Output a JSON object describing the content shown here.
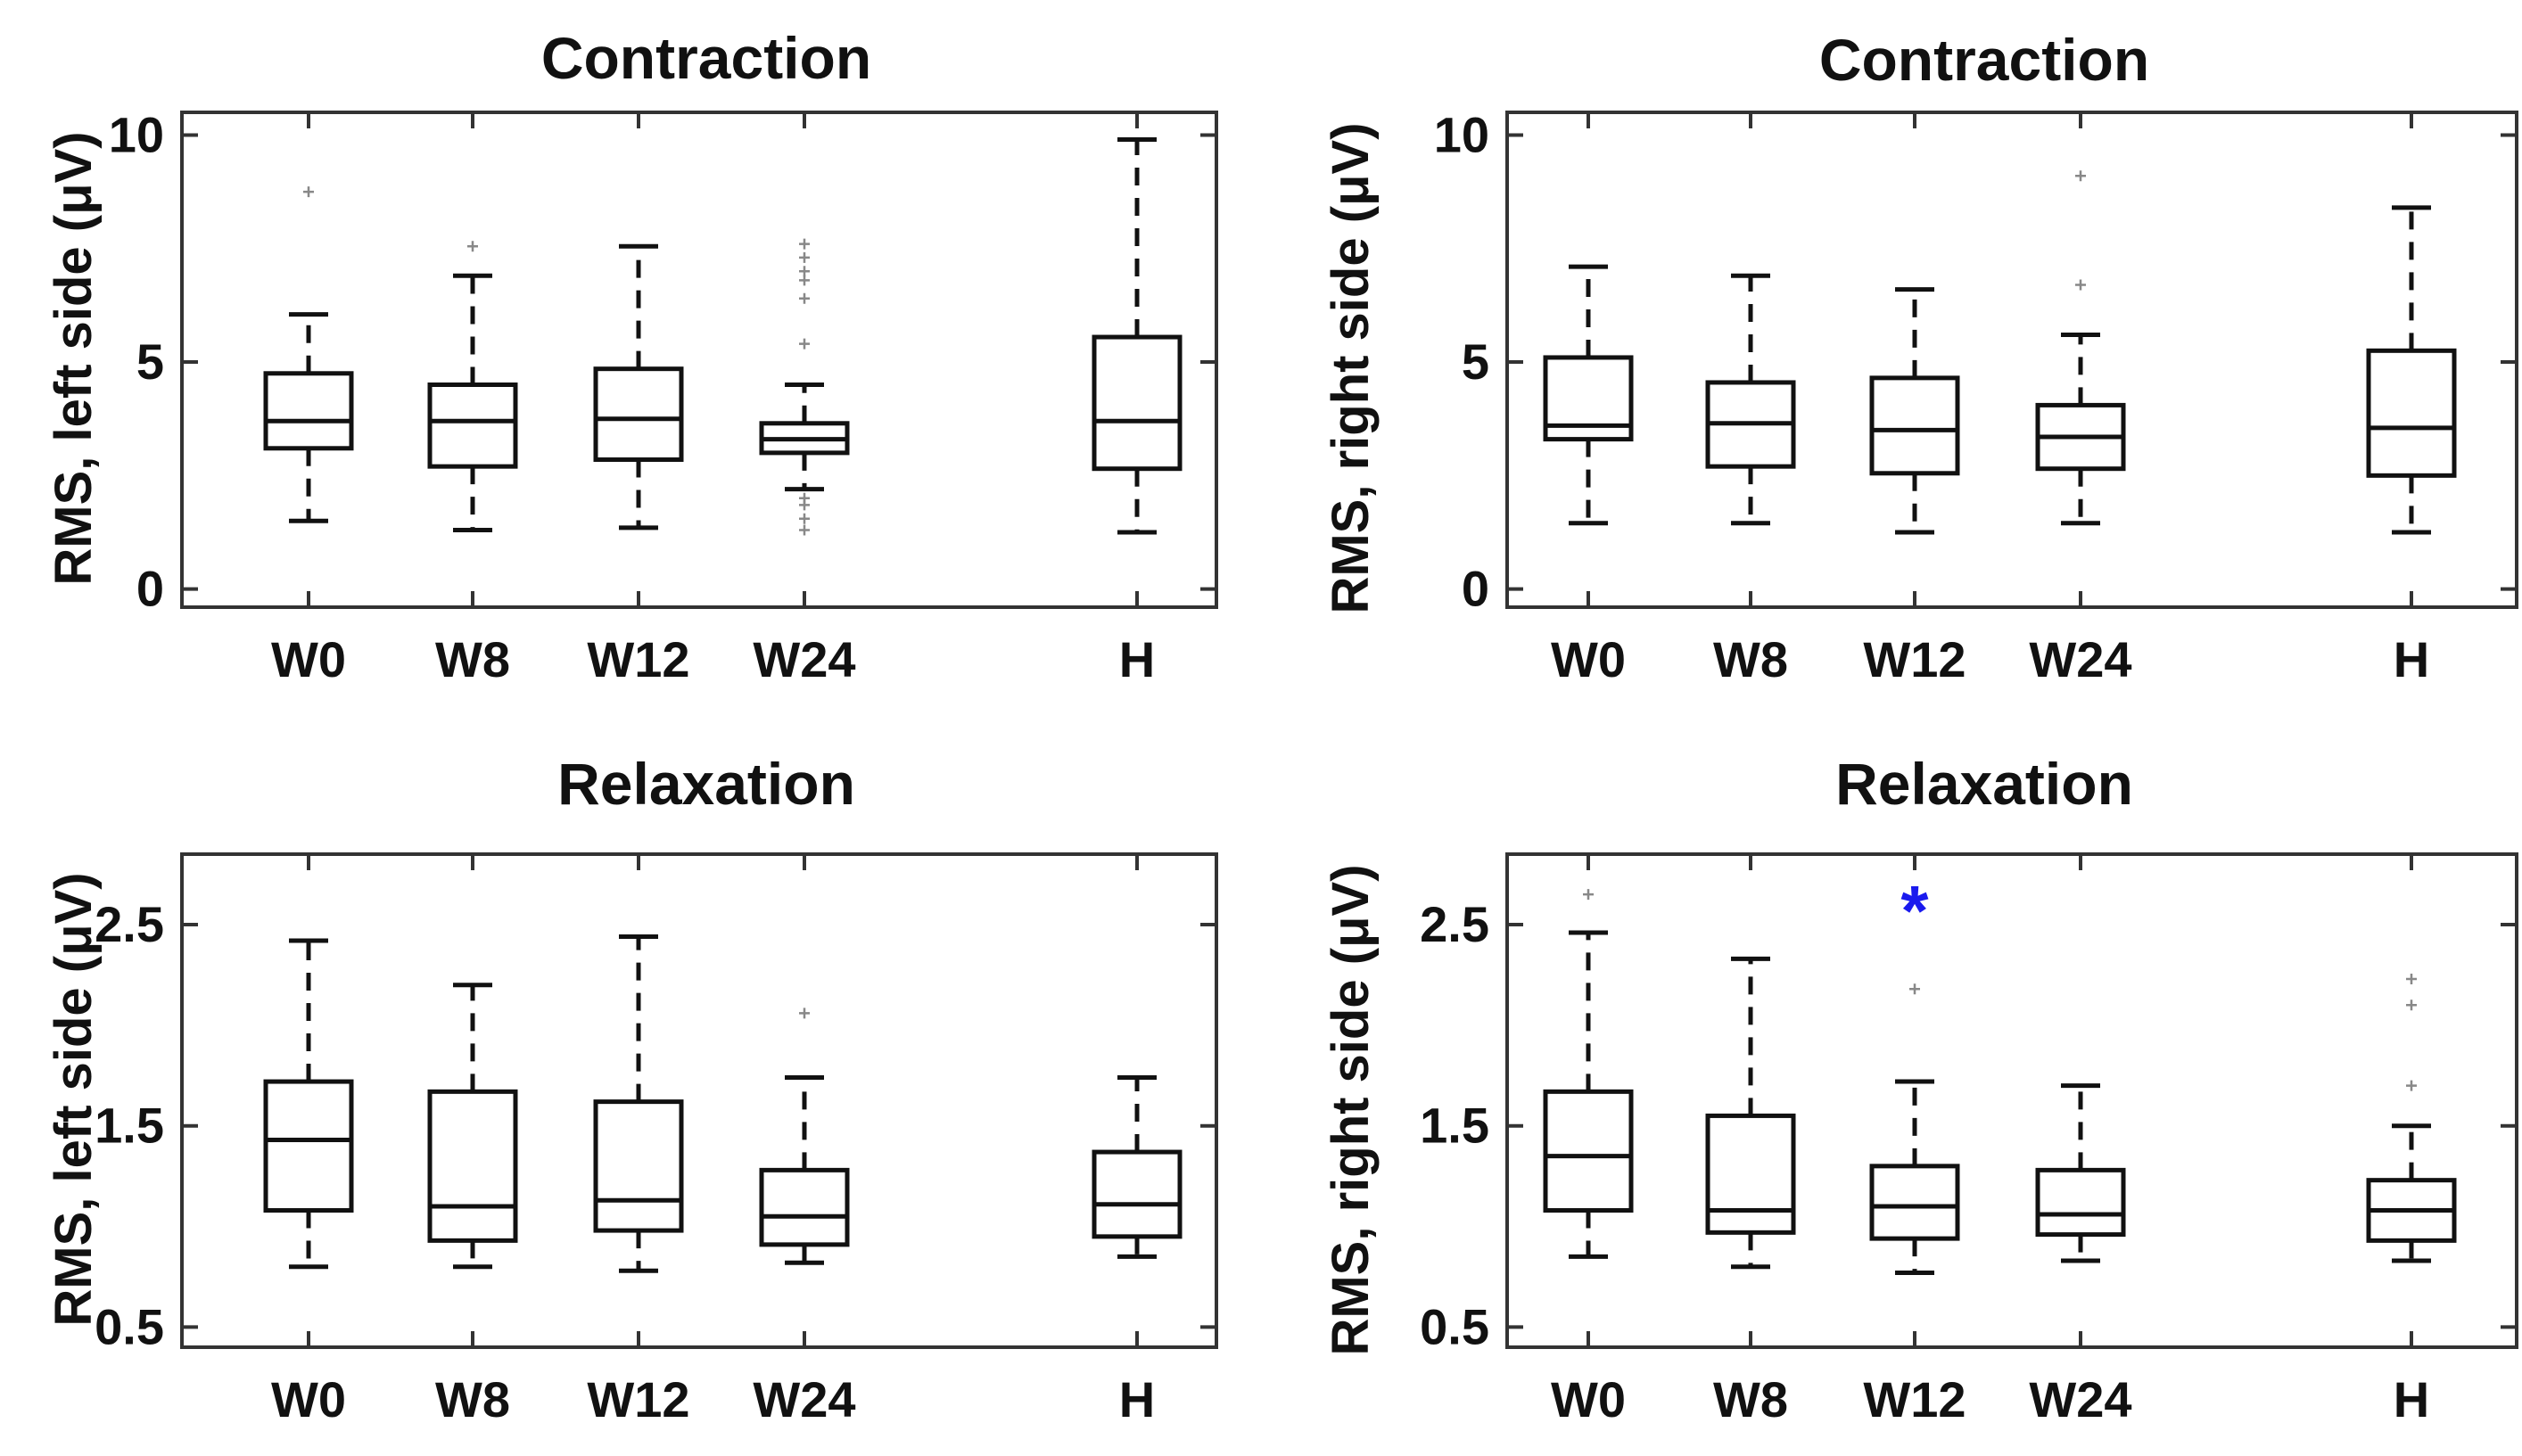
{
  "chart_data": [
    {
      "type": "box",
      "title": "Contraction",
      "ylabel": "RMS, left side (μV)",
      "xlabel": "",
      "categories": [
        "W0",
        "W8",
        "W12",
        "W24",
        "H"
      ],
      "ylim": [
        -0.4,
        10.5
      ],
      "yticks": [
        0,
        5,
        10
      ],
      "ytick_labels": [
        "0",
        "5",
        "10"
      ],
      "boxes": [
        {
          "category": "W0",
          "whisker_low": 1.5,
          "q1": 3.1,
          "median": 3.7,
          "q3": 4.75,
          "whisker_high": 6.05,
          "outliers": [
            8.75
          ]
        },
        {
          "category": "W8",
          "whisker_low": 1.3,
          "q1": 2.7,
          "median": 3.7,
          "q3": 4.5,
          "whisker_high": 6.9,
          "outliers": [
            7.55
          ]
        },
        {
          "category": "W12",
          "whisker_low": 1.35,
          "q1": 2.85,
          "median": 3.75,
          "q3": 4.85,
          "whisker_high": 7.55,
          "outliers": []
        },
        {
          "category": "W24",
          "whisker_low": 2.2,
          "q1": 3.0,
          "median": 3.3,
          "q3": 3.65,
          "whisker_high": 4.5,
          "outliers": [
            1.3,
            1.55,
            1.85,
            2.0,
            5.4,
            6.4,
            6.8,
            7.0,
            7.3,
            7.6
          ]
        },
        {
          "category": "H",
          "whisker_low": 1.25,
          "q1": 2.65,
          "median": 3.7,
          "q3": 5.55,
          "whisker_high": 9.9,
          "outliers": []
        }
      ],
      "annotations": []
    },
    {
      "type": "box",
      "title": "Contraction",
      "ylabel": "RMS, right side (μV)",
      "xlabel": "",
      "categories": [
        "W0",
        "W8",
        "W12",
        "W24",
        "H"
      ],
      "ylim": [
        -0.4,
        10.5
      ],
      "yticks": [
        0,
        5,
        10
      ],
      "ytick_labels": [
        "0",
        "5",
        "10"
      ],
      "boxes": [
        {
          "category": "W0",
          "whisker_low": 1.45,
          "q1": 3.3,
          "median": 3.6,
          "q3": 5.1,
          "whisker_high": 7.1,
          "outliers": []
        },
        {
          "category": "W8",
          "whisker_low": 1.45,
          "q1": 2.7,
          "median": 3.65,
          "q3": 4.55,
          "whisker_high": 6.9,
          "outliers": []
        },
        {
          "category": "W12",
          "whisker_low": 1.25,
          "q1": 2.55,
          "median": 3.5,
          "q3": 4.65,
          "whisker_high": 6.6,
          "outliers": []
        },
        {
          "category": "W24",
          "whisker_low": 1.45,
          "q1": 2.65,
          "median": 3.35,
          "q3": 4.05,
          "whisker_high": 5.6,
          "outliers": [
            6.7,
            9.1
          ]
        },
        {
          "category": "H",
          "whisker_low": 1.25,
          "q1": 2.5,
          "median": 3.55,
          "q3": 5.25,
          "whisker_high": 8.4,
          "outliers": []
        }
      ],
      "annotations": []
    },
    {
      "type": "box",
      "title": "Relaxation",
      "ylabel": "RMS,  left side (μV)",
      "xlabel": "",
      "categories": [
        "W0",
        "W8",
        "W12",
        "W24",
        "H"
      ],
      "ylim": [
        0.4,
        2.85
      ],
      "yticks": [
        0.5,
        1.5,
        2.5
      ],
      "ytick_labels": [
        "0.5",
        "1.5",
        "2.5"
      ],
      "boxes": [
        {
          "category": "W0",
          "whisker_low": 0.8,
          "q1": 1.08,
          "median": 1.43,
          "q3": 1.72,
          "whisker_high": 2.42,
          "outliers": []
        },
        {
          "category": "W8",
          "whisker_low": 0.8,
          "q1": 0.93,
          "median": 1.1,
          "q3": 1.67,
          "whisker_high": 2.2,
          "outliers": []
        },
        {
          "category": "W12",
          "whisker_low": 0.78,
          "q1": 0.98,
          "median": 1.13,
          "q3": 1.62,
          "whisker_high": 2.44,
          "outliers": []
        },
        {
          "category": "W24",
          "whisker_low": 0.82,
          "q1": 0.91,
          "median": 1.05,
          "q3": 1.28,
          "whisker_high": 1.74,
          "outliers": [
            2.06
          ]
        },
        {
          "category": "H",
          "whisker_low": 0.85,
          "q1": 0.95,
          "median": 1.11,
          "q3": 1.37,
          "whisker_high": 1.74,
          "outliers": []
        }
      ],
      "annotations": []
    },
    {
      "type": "box",
      "title": "Relaxation",
      "ylabel": "RMS, right side (μV)",
      "xlabel": "",
      "categories": [
        "W0",
        "W8",
        "W12",
        "W24",
        "H"
      ],
      "ylim": [
        0.4,
        2.85
      ],
      "yticks": [
        0.5,
        1.5,
        2.5
      ],
      "ytick_labels": [
        "0.5",
        "1.5",
        "2.5"
      ],
      "boxes": [
        {
          "category": "W0",
          "whisker_low": 0.85,
          "q1": 1.08,
          "median": 1.35,
          "q3": 1.67,
          "whisker_high": 2.46,
          "outliers": [
            2.65
          ]
        },
        {
          "category": "W8",
          "whisker_low": 0.8,
          "q1": 0.97,
          "median": 1.08,
          "q3": 1.55,
          "whisker_high": 2.33,
          "outliers": []
        },
        {
          "category": "W12",
          "whisker_low": 0.77,
          "q1": 0.94,
          "median": 1.1,
          "q3": 1.3,
          "whisker_high": 1.72,
          "outliers": [
            2.18
          ]
        },
        {
          "category": "W24",
          "whisker_low": 0.83,
          "q1": 0.96,
          "median": 1.06,
          "q3": 1.28,
          "whisker_high": 1.7,
          "outliers": []
        },
        {
          "category": "H",
          "whisker_low": 0.83,
          "q1": 0.93,
          "median": 1.08,
          "q3": 1.23,
          "whisker_high": 1.5,
          "outliers": [
            1.7,
            2.1,
            2.23
          ]
        }
      ],
      "annotations": [
        {
          "category": "W12",
          "text": "*",
          "y": 2.58,
          "color": "#1a1aee"
        }
      ]
    }
  ]
}
